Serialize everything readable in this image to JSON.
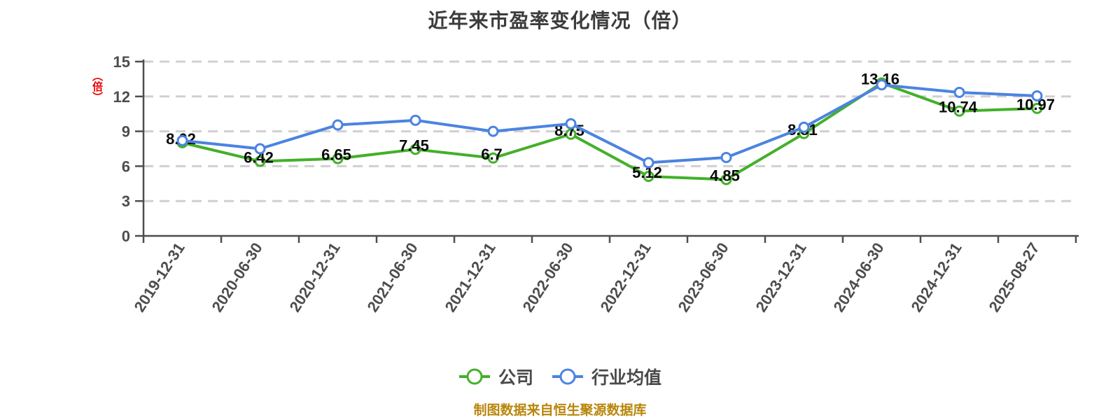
{
  "title": "近年来市盈率变化情况（倍）",
  "y_axis_unit": "（倍）",
  "footer": "制图数据来自恒生聚源数据库",
  "colors": {
    "company_green": "#43b02a",
    "industry_blue": "#4b83e1",
    "grid": "#d0d0d0",
    "axis": "#4d4d4d",
    "data_label": "#0a0a0a",
    "title_text": "#3c3c3c",
    "footer_text": "#b8860b",
    "unit_red": "#e60000"
  },
  "legend": {
    "items": [
      {
        "label": "公司",
        "color": "#43b02a"
      },
      {
        "label": "行业均值",
        "color": "#4b83e1"
      }
    ]
  },
  "chart_data": {
    "type": "line",
    "title": "近年来市盈率变化情况（倍）",
    "ylabel": "（倍）",
    "xlabel": "",
    "ylim": [
      0,
      15
    ],
    "yticks": [
      0,
      3,
      6,
      9,
      12,
      15
    ],
    "grid": true,
    "grid_style": "dashed",
    "legend_position": "bottom",
    "x_label_rotation_deg": 57,
    "categories": [
      "2019-12-31",
      "2020-06-30",
      "2020-12-31",
      "2021-06-30",
      "2021-12-31",
      "2022-06-30",
      "2022-12-31",
      "2023-06-30",
      "2023-12-31",
      "2024-06-30",
      "2024-12-31",
      "2025-08-27"
    ],
    "series": [
      {
        "name": "公司",
        "color": "#43b02a",
        "show_labels": true,
        "marker": "circle-white-fill",
        "values": [
          8.02,
          6.42,
          6.65,
          7.45,
          6.7,
          8.75,
          5.12,
          4.85,
          8.81,
          13.16,
          10.74,
          10.97
        ]
      },
      {
        "name": "行业均值",
        "color": "#4b83e1",
        "show_labels": false,
        "marker": "circle-white-fill",
        "values": [
          8.2,
          7.5,
          9.55,
          9.95,
          9.0,
          9.65,
          6.3,
          6.75,
          9.35,
          13.0,
          12.35,
          12.05
        ]
      }
    ]
  }
}
